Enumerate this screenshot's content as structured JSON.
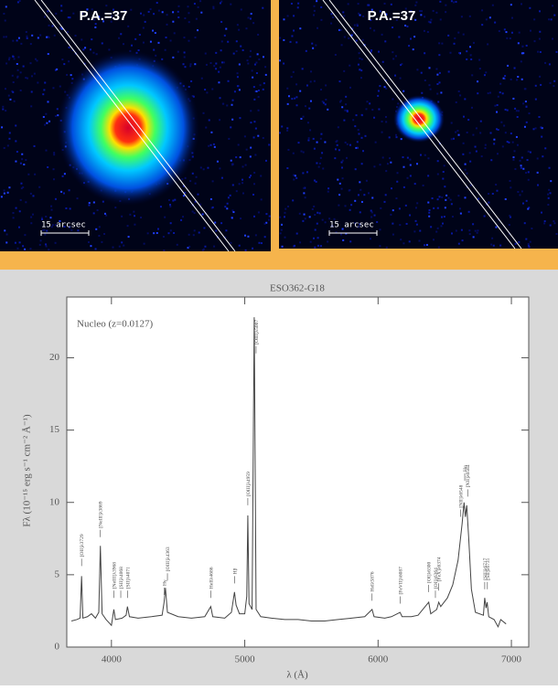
{
  "images": [
    {
      "label": "P.A.=37",
      "scale": "15 arcsec"
    },
    {
      "label": "P.A.=37",
      "scale": "15 arcsec"
    }
  ],
  "chart_data": {
    "type": "line",
    "title": "ESO362-G18",
    "annotation": "Nucleo (z=0.0127)",
    "x_label": "λ (Å)",
    "y_label": "Fλ (10⁻¹⁵ erg s⁻¹ cm⁻² Å⁻¹)",
    "xlim": [
      3665,
      7130
    ],
    "xticks": [
      4000,
      5000,
      6000,
      7000
    ],
    "ylim": [
      0,
      24.2
    ],
    "yticks": [
      0,
      5,
      10,
      15,
      20
    ],
    "x": [
      3700,
      3740,
      3765,
      3776,
      3786,
      3820,
      3850,
      3880,
      3905,
      3917,
      3930,
      3960,
      4000,
      4018,
      4030,
      4080,
      4110,
      4120,
      4135,
      4200,
      4300,
      4380,
      4395,
      4405,
      4420,
      4500,
      4600,
      4700,
      4745,
      4760,
      4850,
      4900,
      4923,
      4935,
      4960,
      5000,
      5015,
      5023,
      5032,
      5055,
      5071,
      5085,
      5120,
      5200,
      5300,
      5400,
      5500,
      5600,
      5700,
      5800,
      5900,
      5955,
      5970,
      6050,
      6100,
      6165,
      6180,
      6250,
      6300,
      6380,
      6395,
      6440,
      6455,
      6470,
      6520,
      6560,
      6600,
      6630,
      6645,
      6655,
      6665,
      6680,
      6700,
      6730,
      6790,
      6800,
      6810,
      6818,
      6830,
      6870,
      6900,
      6920,
      6960
    ],
    "series": [
      {
        "name": "Nucleo",
        "color": "#444444",
        "values": [
          1.8,
          1.9,
          2.0,
          4.9,
          2.0,
          2.1,
          2.3,
          2.0,
          2.4,
          7.0,
          2.3,
          1.9,
          1.5,
          2.6,
          1.9,
          2.0,
          2.2,
          2.8,
          2.1,
          2.0,
          2.1,
          2.2,
          3.1,
          4.1,
          2.4,
          2.1,
          2.0,
          2.1,
          2.8,
          2.1,
          2.0,
          2.4,
          3.8,
          2.9,
          2.3,
          2.3,
          3.5,
          9.1,
          3.0,
          2.6,
          22.8,
          2.6,
          2.1,
          2.0,
          1.9,
          1.9,
          1.8,
          1.8,
          1.9,
          2.0,
          2.1,
          2.6,
          2.1,
          2.0,
          2.1,
          2.4,
          2.1,
          2.1,
          2.2,
          3.1,
          2.3,
          2.6,
          3.1,
          2.8,
          3.4,
          4.3,
          6.0,
          8.5,
          10.0,
          9.0,
          9.8,
          7.5,
          4.0,
          2.4,
          2.2,
          3.4,
          2.7,
          3.1,
          2.1,
          1.9,
          1.4,
          1.9,
          1.6
        ]
      }
    ],
    "line_labels": [
      "[OII]λ3729",
      "[NeIII]λ3869",
      "[NeIII]λ3968",
      "[SII]λ4068",
      "[SII]λ4071",
      "Hγ",
      "[OIII]λ4363",
      "HeIIλ4686",
      "Hβ",
      "[OIII]λ4959",
      "[OIII]λ5007",
      "HeIλ5876",
      "[FeVII]λ6087",
      "[OI]λ6300",
      "[OI]λ6364",
      "[FeX]λ6374",
      "[NII]λ6548",
      "Hα",
      "[NII]λ6584",
      "[SII]λ6717",
      "[SII]λ6731"
    ]
  }
}
